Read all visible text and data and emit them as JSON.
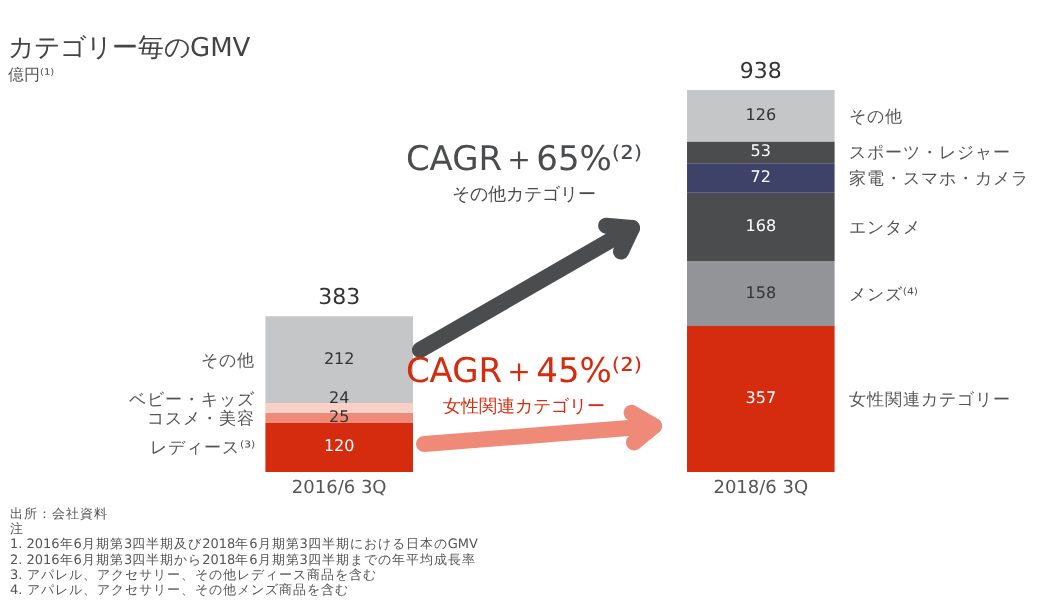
{
  "chart_data": {
    "type": "bar",
    "stacked": true,
    "title": "カテゴリー毎のGMV",
    "subtitle": "億円⁽¹⁾",
    "categories": [
      "2016/6 3Q",
      "2018/6 3Q"
    ],
    "series": [
      {
        "name": "レディース⁽³⁾",
        "color": "#d52b0e",
        "values": [
          120,
          null
        ]
      },
      {
        "name": "コスメ・美容",
        "color": "#f08a78",
        "values": [
          25,
          null
        ]
      },
      {
        "name": "ベビー・キッズ",
        "color": "#f8d0c6",
        "values": [
          24,
          null
        ]
      },
      {
        "name": "女性関連カテゴリー",
        "color": "#d52b0e",
        "values": [
          null,
          357
        ]
      },
      {
        "name": "メンズ⁽⁴⁾",
        "color": "#929497",
        "values": [
          null,
          158
        ]
      },
      {
        "name": "エンタメ",
        "color": "#4a4c4e",
        "values": [
          null,
          168
        ]
      },
      {
        "name": "家電・スマホ・カメラ",
        "color": "#3e4268",
        "values": [
          null,
          72
        ]
      },
      {
        "name": "スポーツ・レジャー",
        "color": "#4a4c4e",
        "values": [
          null,
          53
        ]
      },
      {
        "name": "その他",
        "color": "#c4c6c8",
        "values": [
          212,
          126
        ]
      }
    ],
    "data_labels": true,
    "totals": [
      "383",
      "938"
    ],
    "legend": false,
    "grid": false,
    "annotations": [
      "CAGR＋65%⁽²⁾",
      "その他カテゴリー",
      "CAGR＋45%⁽²⁾",
      "女性関連カテゴリー",
      "出所：会社資料",
      "注",
      "1. 2016年6月期第3四半期及び2018年6月期第3四半期における日本のGMV",
      "2. 2016年6月期第3四半期から2018年6月期第3四半期までの年平均成長率",
      "3. アパレル、アクセサリー、その他レディース商品を含む",
      "4. アパレル、アクセサリー、その他メンズ商品を含む"
    ]
  }
}
